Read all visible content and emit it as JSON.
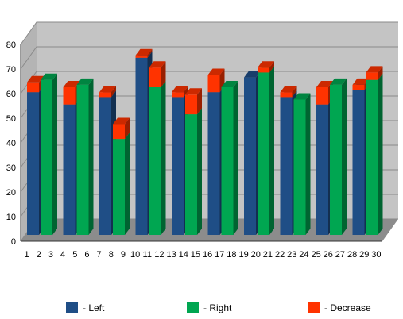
{
  "chart_data": {
    "type": "bar",
    "subtype": "3d-stacked-grouped",
    "ylim": [
      0,
      80
    ],
    "yticks": [
      0,
      10,
      20,
      30,
      40,
      50,
      60,
      70,
      80
    ],
    "x_tick_labels": [
      "1",
      "2",
      "3",
      "4",
      "5",
      "6",
      "7",
      "8",
      "9",
      "10",
      "11",
      "12",
      "13",
      "14",
      "15",
      "16",
      "17",
      "18",
      "19",
      "20",
      "21",
      "22",
      "23",
      "24",
      "25",
      "26",
      "27",
      "28",
      "29",
      "30"
    ],
    "grid": true,
    "legend_position": "bottom",
    "legend": [
      {
        "label": "- Left",
        "color": "#1f4e86"
      },
      {
        "label": "- Right",
        "color": "#00a651"
      },
      {
        "label": "- Decrease",
        "color": "#ff3300"
      }
    ],
    "groups": [
      {
        "left": 58,
        "right": 63,
        "decrease_on": "left",
        "decrease": 4
      },
      {
        "left": 53,
        "right": 61,
        "decrease_on": "left",
        "decrease": 7
      },
      {
        "left": 56,
        "right": 39,
        "decrease_on": "left",
        "decrease": 2
      },
      {
        "left": 72,
        "right": 60,
        "decrease_on": "left",
        "decrease": 1
      },
      {
        "left": 56,
        "right": 49,
        "decrease_on": "left",
        "decrease": 2
      },
      {
        "left": 58,
        "right": 60,
        "decrease_on": "left",
        "decrease": 7
      },
      {
        "left": 64,
        "right": 66,
        "decrease_on": "right",
        "decrease": 1
      },
      {
        "left": 56,
        "right": 55,
        "decrease_on": "left",
        "decrease": 2
      },
      {
        "left": 53,
        "right": 61,
        "decrease_on": "left",
        "decrease": 7
      },
      {
        "left": 59,
        "right": 63,
        "decrease_on": "left",
        "decrease": 2
      }
    ],
    "decrease_on_right_groups": [
      {
        "group": 2,
        "decrease": 6
      },
      {
        "group": 3,
        "decrease": 8
      },
      {
        "group": 4,
        "decrease": 8
      },
      {
        "group": 6,
        "decrease": 1
      },
      {
        "group": 9,
        "decrease": 3
      }
    ]
  },
  "colors": {
    "left": "#1f4e86",
    "right": "#00a651",
    "decrease": "#ff3300",
    "wall": "#c4c4c4",
    "floor": "#8c8c8c",
    "grid": "#8a8a8a"
  }
}
